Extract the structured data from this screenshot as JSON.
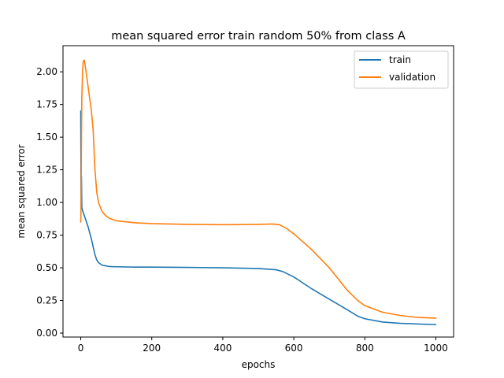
{
  "chart_data": {
    "type": "line",
    "title": "mean squared error train random 50% from class A",
    "xlabel": "epochs",
    "ylabel": "mean squared error",
    "xlim": [
      -50,
      1050
    ],
    "ylim": [
      -0.03,
      2.2
    ],
    "xticks": [
      0,
      200,
      400,
      600,
      800,
      1000
    ],
    "xtick_labels": [
      "0",
      "200",
      "400",
      "600",
      "800",
      "1000"
    ],
    "yticks": [
      0.0,
      0.25,
      0.5,
      0.75,
      1.0,
      1.25,
      1.5,
      1.75,
      2.0
    ],
    "ytick_labels": [
      "0.00",
      "0.25",
      "0.50",
      "0.75",
      "1.00",
      "1.25",
      "1.50",
      "1.75",
      "2.00"
    ],
    "grid": false,
    "legend_position": "top-right",
    "series": [
      {
        "name": "train",
        "color": "#1f77b4",
        "x": [
          0,
          1,
          2,
          3,
          5,
          10,
          20,
          30,
          40,
          45,
          50,
          60,
          70,
          80,
          100,
          150,
          200,
          300,
          400,
          500,
          550,
          570,
          600,
          650,
          700,
          750,
          780,
          800,
          850,
          900,
          950,
          1000
        ],
        "y": [
          1.7,
          0.95,
          1.2,
          0.96,
          0.94,
          0.9,
          0.82,
          0.72,
          0.6,
          0.56,
          0.54,
          0.52,
          0.515,
          0.51,
          0.508,
          0.505,
          0.505,
          0.503,
          0.5,
          0.495,
          0.485,
          0.47,
          0.43,
          0.34,
          0.26,
          0.18,
          0.13,
          0.11,
          0.085,
          0.075,
          0.07,
          0.065
        ]
      },
      {
        "name": "validation",
        "color": "#ff7f0e",
        "x": [
          0,
          1,
          2,
          3,
          5,
          7,
          10,
          15,
          20,
          25,
          30,
          35,
          40,
          45,
          50,
          60,
          70,
          80,
          100,
          150,
          200,
          300,
          400,
          500,
          540,
          560,
          580,
          600,
          650,
          700,
          750,
          780,
          800,
          850,
          900,
          950,
          1000
        ],
        "y": [
          0.85,
          1.0,
          1.5,
          1.8,
          2.0,
          2.08,
          2.09,
          2.0,
          1.9,
          1.8,
          1.7,
          1.55,
          1.25,
          1.08,
          1.0,
          0.93,
          0.9,
          0.88,
          0.86,
          0.845,
          0.838,
          0.832,
          0.83,
          0.832,
          0.835,
          0.83,
          0.8,
          0.76,
          0.64,
          0.5,
          0.33,
          0.25,
          0.21,
          0.16,
          0.135,
          0.12,
          0.115
        ]
      }
    ]
  }
}
